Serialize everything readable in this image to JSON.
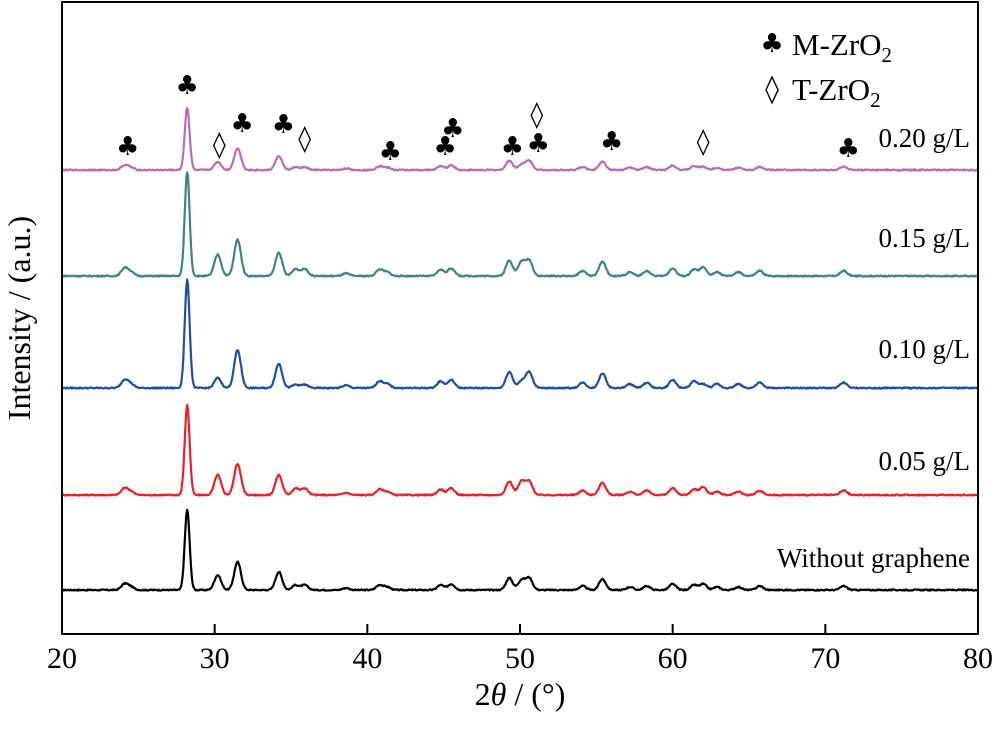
{
  "chart_data": {
    "type": "line",
    "xlabel_prefix": "2",
    "xlabel_theta": "θ",
    "xlabel_suffix": " / (°)",
    "ylabel": "Intensity / (a.u.)",
    "xlim": [
      20,
      80
    ],
    "x_ticks": [
      "20",
      "30",
      "40",
      "50",
      "60",
      "70",
      "80"
    ],
    "legend": [
      {
        "symbol": "♣",
        "label_main": "M-ZrO",
        "label_sub": "2"
      },
      {
        "symbol": "◊",
        "label_main": "T-ZrO",
        "label_sub": "2"
      }
    ],
    "peaks": [
      {
        "x": 24.1,
        "h": 0.06
      },
      {
        "x": 24.5,
        "h": 0.03
      },
      {
        "x": 28.2,
        "h": 0.8
      },
      {
        "x": 30.2,
        "h": 0.15
      },
      {
        "x": 31.5,
        "h": 0.28
      },
      {
        "x": 34.2,
        "h": 0.18
      },
      {
        "x": 35.3,
        "h": 0.05
      },
      {
        "x": 35.9,
        "h": 0.05
      },
      {
        "x": 38.6,
        "h": 0.02
      },
      {
        "x": 40.8,
        "h": 0.05
      },
      {
        "x": 41.3,
        "h": 0.03
      },
      {
        "x": 44.8,
        "h": 0.05
      },
      {
        "x": 45.5,
        "h": 0.06
      },
      {
        "x": 49.3,
        "h": 0.12
      },
      {
        "x": 50.1,
        "h": 0.1
      },
      {
        "x": 50.6,
        "h": 0.12
      },
      {
        "x": 54.1,
        "h": 0.04
      },
      {
        "x": 55.4,
        "h": 0.11
      },
      {
        "x": 57.2,
        "h": 0.03
      },
      {
        "x": 58.3,
        "h": 0.04
      },
      {
        "x": 60.0,
        "h": 0.06
      },
      {
        "x": 61.4,
        "h": 0.05
      },
      {
        "x": 62.0,
        "h": 0.06
      },
      {
        "x": 62.9,
        "h": 0.03
      },
      {
        "x": 64.3,
        "h": 0.03
      },
      {
        "x": 65.7,
        "h": 0.04
      },
      {
        "x": 71.2,
        "h": 0.04
      }
    ],
    "series": [
      {
        "name": "Without graphene",
        "color": "#000000",
        "scale": 1.0,
        "t_boost": 1.0,
        "offset": 0
      },
      {
        "name": "0.05 g/L",
        "color": "#e8202a",
        "scale": 1.12,
        "t_boost": 1.2,
        "offset": 1
      },
      {
        "name": "0.10 g/L",
        "color": "#1f4ea3",
        "scale": 1.35,
        "t_boost": 0.5,
        "offset": 2
      },
      {
        "name": "0.15 g/L",
        "color": "#3d8580",
        "scale": 1.3,
        "t_boost": 1.1,
        "offset": 3
      },
      {
        "name": "0.20 g/L",
        "color": "#b86cb2",
        "scale": 0.78,
        "t_boost": 0.7,
        "offset": 4
      }
    ],
    "markers": [
      {
        "x": 24.3,
        "type": "M"
      },
      {
        "x": 28.2,
        "type": "M"
      },
      {
        "x": 30.3,
        "type": "T"
      },
      {
        "x": 31.8,
        "type": "M"
      },
      {
        "x": 34.5,
        "type": "M"
      },
      {
        "x": 35.9,
        "type": "T"
      },
      {
        "x": 41.5,
        "type": "M"
      },
      {
        "x": 45.1,
        "type": "M"
      },
      {
        "x": 45.6,
        "type": "M"
      },
      {
        "x": 49.5,
        "type": "M"
      },
      {
        "x": 51.2,
        "type": "M"
      },
      {
        "x": 51.1,
        "type": "T"
      },
      {
        "x": 56.0,
        "type": "M"
      },
      {
        "x": 62.0,
        "type": "T"
      },
      {
        "x": 71.5,
        "type": "M"
      }
    ],
    "grid": false,
    "legend_position": "top-right"
  }
}
